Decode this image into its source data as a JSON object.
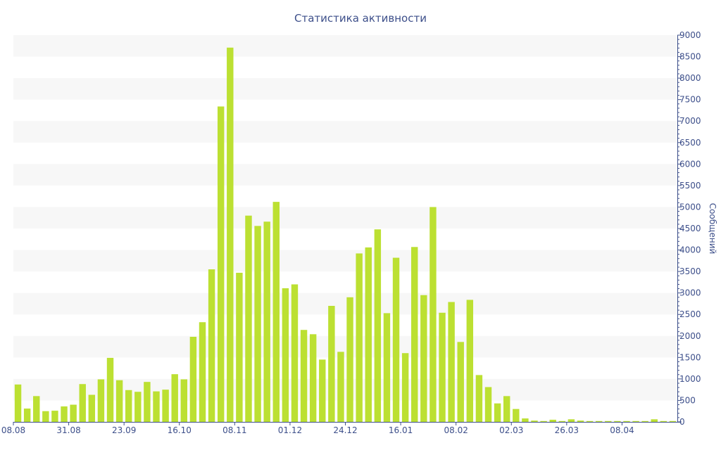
{
  "chart_data": {
    "type": "bar",
    "title": "Статистика активности",
    "xlabel": "",
    "ylabel": "Сообщений",
    "y_axis_side": "right",
    "ylim": [
      0,
      9000
    ],
    "y_ticks": [
      0,
      500,
      1000,
      1500,
      2000,
      2500,
      3000,
      3500,
      4000,
      4500,
      5000,
      5500,
      6000,
      6500,
      7000,
      7500,
      8000,
      8500,
      9000
    ],
    "x_tick_labels": [
      {
        "label": "08.08",
        "index": 0
      },
      {
        "label": "31.08",
        "index": 6
      },
      {
        "label": "23.09",
        "index": 12
      },
      {
        "label": "16.10",
        "index": 18
      },
      {
        "label": "08.11",
        "index": 24
      },
      {
        "label": "01.12",
        "index": 30
      },
      {
        "label": "24.12",
        "index": 36
      },
      {
        "label": "16.01",
        "index": 42
      },
      {
        "label": "08.02",
        "index": 48
      },
      {
        "label": "02.03",
        "index": 54
      },
      {
        "label": "26.03",
        "index": 60
      },
      {
        "label": "08.04",
        "index": 66
      }
    ],
    "grid": "alternating horizontal bands",
    "colors": {
      "bar": "#bce032",
      "band": "#f7f7f7",
      "text": "#3d4f8a",
      "axis": "#3d4f8a"
    },
    "series": [
      {
        "values": [
          870,
          310,
          600,
          250,
          260,
          360,
          400,
          880,
          630,
          990,
          1490,
          970,
          740,
          700,
          930,
          710,
          750,
          1110,
          990,
          1980,
          2320,
          3550,
          7340,
          8710,
          3470,
          4800,
          4560,
          4660,
          5120,
          3110,
          3200,
          2140,
          2040,
          1450,
          2700,
          1630,
          2900,
          3920,
          4060,
          4480,
          2530,
          3820,
          1600,
          4070,
          2950,
          5000,
          2540,
          2790,
          1860,
          2840,
          1090,
          810,
          430,
          600,
          300,
          80,
          30,
          20,
          50,
          20,
          60,
          30,
          20,
          20,
          20,
          20,
          20,
          20,
          20,
          60,
          20,
          20
        ]
      }
    ]
  }
}
